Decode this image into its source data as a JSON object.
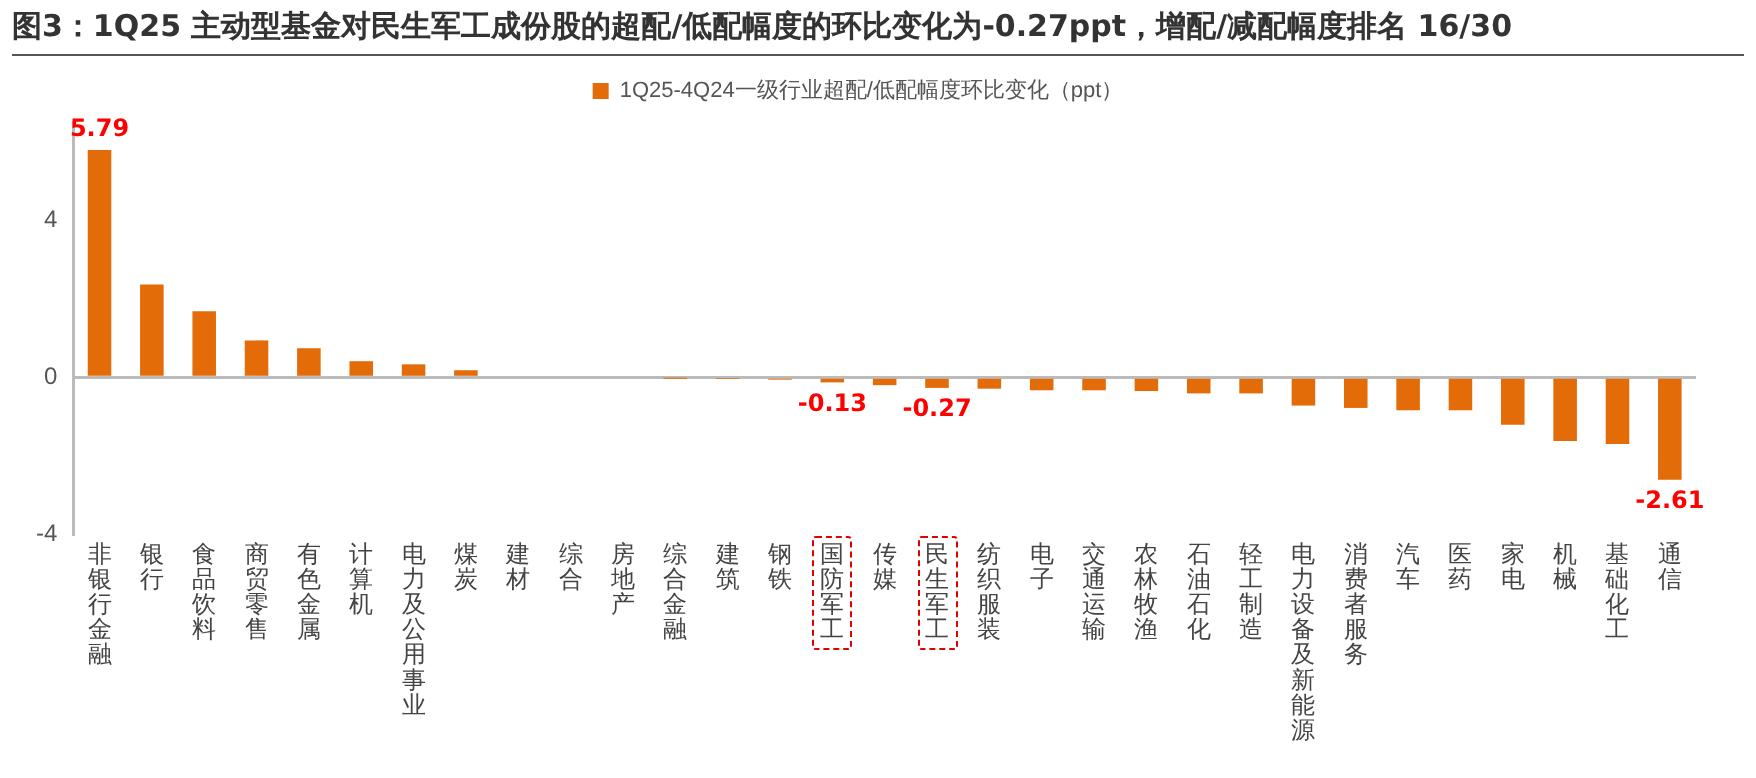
{
  "chart_data": {
    "type": "bar",
    "title": "图3：1Q25 主动型基金对民生军工成份股的超配/低配幅度的环比变化为-0.27ppt，增配/减配幅度排名 16/30",
    "categories": [
      "非银行金融",
      "银行",
      "食品饮料",
      "商贸零售",
      "有色金属",
      "计算机",
      "电力及公用事业",
      "煤炭",
      "建材",
      "综合",
      "房地产",
      "综合金融",
      "建筑",
      "钢铁",
      "国防军工",
      "传媒",
      "民生军工",
      "纺织服装",
      "电子",
      "交通运输",
      "农林牧渔",
      "石油石化",
      "轻工制造",
      "电力设备及新能源",
      "消费者服务",
      "汽车",
      "医药",
      "家电",
      "机械",
      "基础化工",
      "通信"
    ],
    "series": [
      {
        "name": "1Q25-4Q24一级行业超配/低配幅度环比变化（ppt）",
        "color": "#e36c09",
        "values": [
          5.79,
          2.36,
          1.68,
          0.94,
          0.74,
          0.41,
          0.33,
          0.18,
          0,
          0,
          0,
          -0.01,
          -0.02,
          -0.06,
          -0.13,
          -0.2,
          -0.27,
          -0.29,
          -0.33,
          -0.33,
          -0.35,
          -0.41,
          -0.41,
          -0.72,
          -0.78,
          -0.84,
          -0.84,
          -1.21,
          -1.62,
          -1.7,
          -2.61
        ],
        "value_labels": [
          "5.79",
          null,
          null,
          null,
          null,
          null,
          null,
          null,
          null,
          null,
          null,
          null,
          null,
          null,
          "-0.13",
          null,
          "-0.27",
          null,
          null,
          null,
          null,
          null,
          null,
          null,
          null,
          null,
          null,
          null,
          null,
          null,
          "-2.61"
        ]
      }
    ],
    "ylim": [
      -4,
      6.5
    ],
    "yticks": [
      -4,
      0,
      4
    ],
    "legend": "top"
  }
}
